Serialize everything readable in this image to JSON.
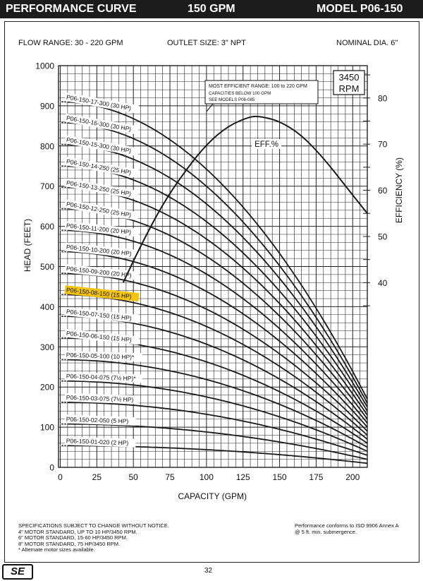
{
  "header": {
    "title": "PERFORMANCE CURVE",
    "flow": "150 GPM",
    "model": "MODEL  P06-150"
  },
  "specs": {
    "flow_range": "FLOW RANGE: 30 - 220 GPM",
    "outlet_size": "OUTLET SIZE: 3\" NPT",
    "nominal_dia": "NOMINAL DIA. 6\""
  },
  "rpm_box": {
    "line1": "3450",
    "line2": "RPM"
  },
  "note_box": {
    "line1": "MOST EFFICIENT RANGE: 100 to 220 GPM",
    "line2": "CAPACITIES BELOW 100 GPM",
    "line3": "SEE MODELS P06-085"
  },
  "footer": {
    "left": [
      "SPECIFICATIONS SUBJECT TO CHANGE WITHOUT NOTICE.",
      "4\" MOTOR STANDARD, UP TO 10 HP/3450 RPM.",
      "6\" MOTOR STANDARD, 15-60 HP/3450 RPM.",
      "8\" MOTOR STANDARD, 75 HP/3450 RPM.",
      "* Alternate motor sizes available."
    ],
    "right": [
      "Performance conforms to ISO 9906 Annex A",
      "@ 5 ft. min. submergence."
    ],
    "page_number": "32",
    "logo": "SE"
  },
  "colors": {
    "curve": "#1a1a1a",
    "grid": "#222222",
    "highlight": "#f2c40f",
    "header_bg": "#1c1c1c"
  },
  "chart_data": {
    "type": "line",
    "xlabel": "CAPACITY (GPM)",
    "ylabel": "HEAD (FEET)",
    "y2label": "EFFICIENCY (%)",
    "xlim": [
      0,
      210
    ],
    "ylim": [
      0,
      1000
    ],
    "y2lim": [
      0,
      87
    ],
    "x_ticks": [
      "0",
      "25",
      "50",
      "75",
      "100",
      "125",
      "150",
      "175",
      "200"
    ],
    "y_ticks": [
      "0",
      "100",
      "200",
      "300",
      "400",
      "500",
      "600",
      "700",
      "800",
      "900",
      "1000"
    ],
    "y2_ticks": [
      "40",
      "50",
      "60",
      "70",
      "80"
    ],
    "grid": true,
    "highlighted_series": "P06-150-08-150 (15 HP)",
    "series": [
      {
        "name": "P06-150-17-300 (30 HP)",
        "shutoff": 910,
        "at210": 170
      },
      {
        "name": "P06-150-16-300 (30 HP)",
        "shutoff": 858,
        "at210": 160
      },
      {
        "name": "P06-150-15-300 (30 HP)",
        "shutoff": 804,
        "at210": 150
      },
      {
        "name": "P06-150-14-250 (25 HP)",
        "shutoff": 750,
        "at210": 140
      },
      {
        "name": "P06-150-13-250 (25 HP)",
        "shutoff": 697,
        "at210": 130
      },
      {
        "name": "P06-150-12-250 (25 HP)",
        "shutoff": 644,
        "at210": 120
      },
      {
        "name": "P06-150-11-200 (20 HP)",
        "shutoff": 590,
        "at210": 110
      },
      {
        "name": "P06-150-10-200 (20 HP)",
        "shutoff": 537,
        "at210": 100
      },
      {
        "name": "P06-150-09-200 (20 HP)",
        "shutoff": 483,
        "at210": 90
      },
      {
        "name": "P06-150-08-150 (15 HP)",
        "shutoff": 430,
        "at210": 80
      },
      {
        "name": "P06-150-07-150 (15 HP)",
        "shutoff": 376,
        "at210": 70
      },
      {
        "name": "P06-150-06-150 (15 HP)",
        "shutoff": 322,
        "at210": 60
      },
      {
        "name": "P06-150-05-100 (10 HP)*",
        "shutoff": 268,
        "at210": 50
      },
      {
        "name": "P06-150-04-075 (7½ HP)*",
        "shutoff": 215,
        "at210": 40
      },
      {
        "name": "P06-150-03-075 (7½ HP)",
        "shutoff": 162,
        "at210": 30
      },
      {
        "name": "P06-150-02-050 (5 HP)",
        "shutoff": 108,
        "at210": 20
      },
      {
        "name": "P06-150-01-020 (2 HP)",
        "shutoff": 54,
        "at210": 10
      }
    ],
    "efficiency": {
      "name": "EFF.%",
      "x": [
        43,
        55,
        70,
        85,
        100,
        115,
        130,
        137,
        150,
        165,
        180,
        195,
        210
      ],
      "y": [
        40,
        48,
        57,
        64,
        70,
        74,
        76,
        76,
        75,
        72,
        67,
        61,
        55
      ]
    }
  }
}
